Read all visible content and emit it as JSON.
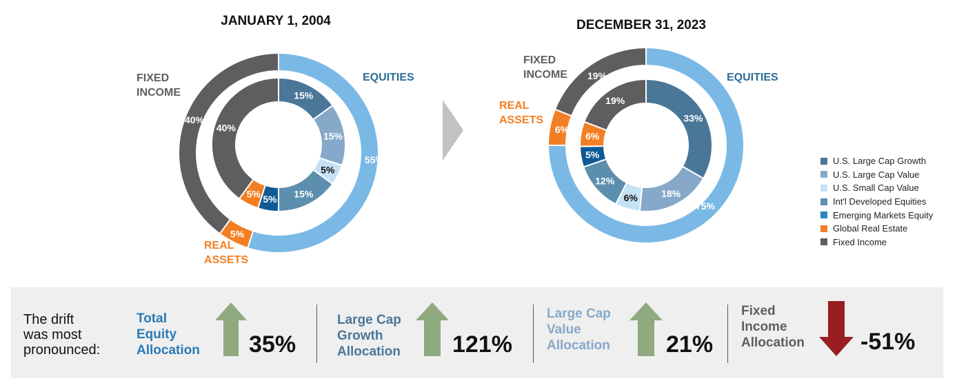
{
  "chart_data": [
    {
      "type": "donut",
      "title": "JANUARY 1, 2004",
      "outer_ring": {
        "segments": [
          {
            "name": "EQUITIES",
            "value": 55,
            "label": "55%",
            "color": "#7ab9e6"
          },
          {
            "name": "REAL ASSETS",
            "value": 5,
            "label": "5%",
            "color": "#f37f24"
          },
          {
            "name": "FIXED INCOME",
            "value": 40,
            "label": "40%",
            "color": "#5e5e60"
          }
        ]
      },
      "inner_ring": {
        "segments": [
          {
            "name": "U.S. Large Cap Growth",
            "value": 15,
            "label": "15%",
            "color": "#4a7698"
          },
          {
            "name": "U.S. Large Cap Value",
            "value": 15,
            "label": "15%",
            "color": "#86a9ca"
          },
          {
            "name": "U.S. Small Cap Value",
            "value": 5,
            "label": "5%",
            "color": "#c5e1f6"
          },
          {
            "name": "Int'l Developed Equities",
            "value": 15,
            "label": "15%",
            "color": "#5c8fae"
          },
          {
            "name": "Emerging Markets Equity",
            "value": 5,
            "label": "5%",
            "color": "#0f5a94"
          },
          {
            "name": "Global Real Estate",
            "value": 5,
            "label": "5%",
            "color": "#f37f24"
          },
          {
            "name": "Fixed Income",
            "value": 40,
            "label": "40%",
            "color": "#5e5e60"
          }
        ]
      },
      "annotations": [
        {
          "text": "EQUITIES",
          "color": "#2b6d97"
        },
        {
          "text": "FIXED INCOME",
          "color": "#5e5e60"
        },
        {
          "text": "REAL ASSETS",
          "color": "#f37f24"
        }
      ]
    },
    {
      "type": "donut",
      "title": "DECEMBER 31, 2023",
      "outer_ring": {
        "segments": [
          {
            "name": "EQUITIES",
            "value": 75,
            "label": "75%",
            "color": "#7ab9e6"
          },
          {
            "name": "REAL ASSETS",
            "value": 6,
            "label": "6%",
            "color": "#f37f24"
          },
          {
            "name": "FIXED INCOME",
            "value": 19,
            "label": "19%",
            "color": "#5e5e60"
          }
        ]
      },
      "inner_ring": {
        "segments": [
          {
            "name": "U.S. Large Cap Growth",
            "value": 33,
            "label": "33%",
            "color": "#4a7698"
          },
          {
            "name": "U.S. Large Cap Value",
            "value": 18,
            "label": "18%",
            "color": "#86a9ca"
          },
          {
            "name": "U.S. Small Cap Value",
            "value": 6,
            "label": "6%",
            "color": "#c5e1f6"
          },
          {
            "name": "Int'l Developed Equities",
            "value": 12,
            "label": "12%",
            "color": "#5c8fae"
          },
          {
            "name": "Emerging Markets Equity",
            "value": 5,
            "label": "5%",
            "color": "#0f5a94"
          },
          {
            "name": "Global Real Estate",
            "value": 6,
            "label": "6%",
            "color": "#f37f24"
          },
          {
            "name": "Fixed Income",
            "value": 19,
            "label": "19%",
            "color": "#5e5e60"
          }
        ]
      },
      "annotations": [
        {
          "text": "EQUITIES",
          "color": "#2b6d97"
        },
        {
          "text": "FIXED INCOME",
          "color": "#5e5e60"
        },
        {
          "text": "REAL ASSETS",
          "color": "#f37f24"
        }
      ]
    }
  ],
  "legend": {
    "placement": "right",
    "items": [
      {
        "label": "U.S. Large Cap Growth",
        "color": "#4a7698"
      },
      {
        "label": "U.S. Large Cap Value",
        "color": "#86a9ca"
      },
      {
        "label": "U.S. Small Cap Value",
        "color": "#c5e1f6"
      },
      {
        "label": "Int'l Developed Equities",
        "color": "#5c8fae"
      },
      {
        "label": "Emerging Markets Equity",
        "color": "#2b86c0"
      },
      {
        "label": "Global Real Estate",
        "color": "#f37f24"
      },
      {
        "label": "Fixed Income",
        "color": "#5e5e60"
      }
    ]
  },
  "drift": {
    "intro": [
      "The drift",
      "was most",
      "pronounced:"
    ],
    "metrics": [
      {
        "label": [
          "Total",
          "Equity",
          "Allocation"
        ],
        "value": "35%",
        "direction": "up",
        "label_color": "#2b7ab5",
        "arrow_color": "#8faa7e"
      },
      {
        "label": [
          "Large Cap",
          "Growth",
          "Allocation"
        ],
        "value": "121%",
        "direction": "up",
        "label_color": "#4a7698",
        "arrow_color": "#8faa7e"
      },
      {
        "label": [
          "Large Cap",
          "Value",
          "Allocation"
        ],
        "value": "21%",
        "direction": "up",
        "label_color": "#86a9ca",
        "arrow_color": "#8faa7e"
      },
      {
        "label": [
          "Fixed",
          "Income",
          "Allocation"
        ],
        "value": "-51%",
        "direction": "down",
        "label_color": "#5e5e60",
        "arrow_color": "#981e21"
      }
    ]
  }
}
